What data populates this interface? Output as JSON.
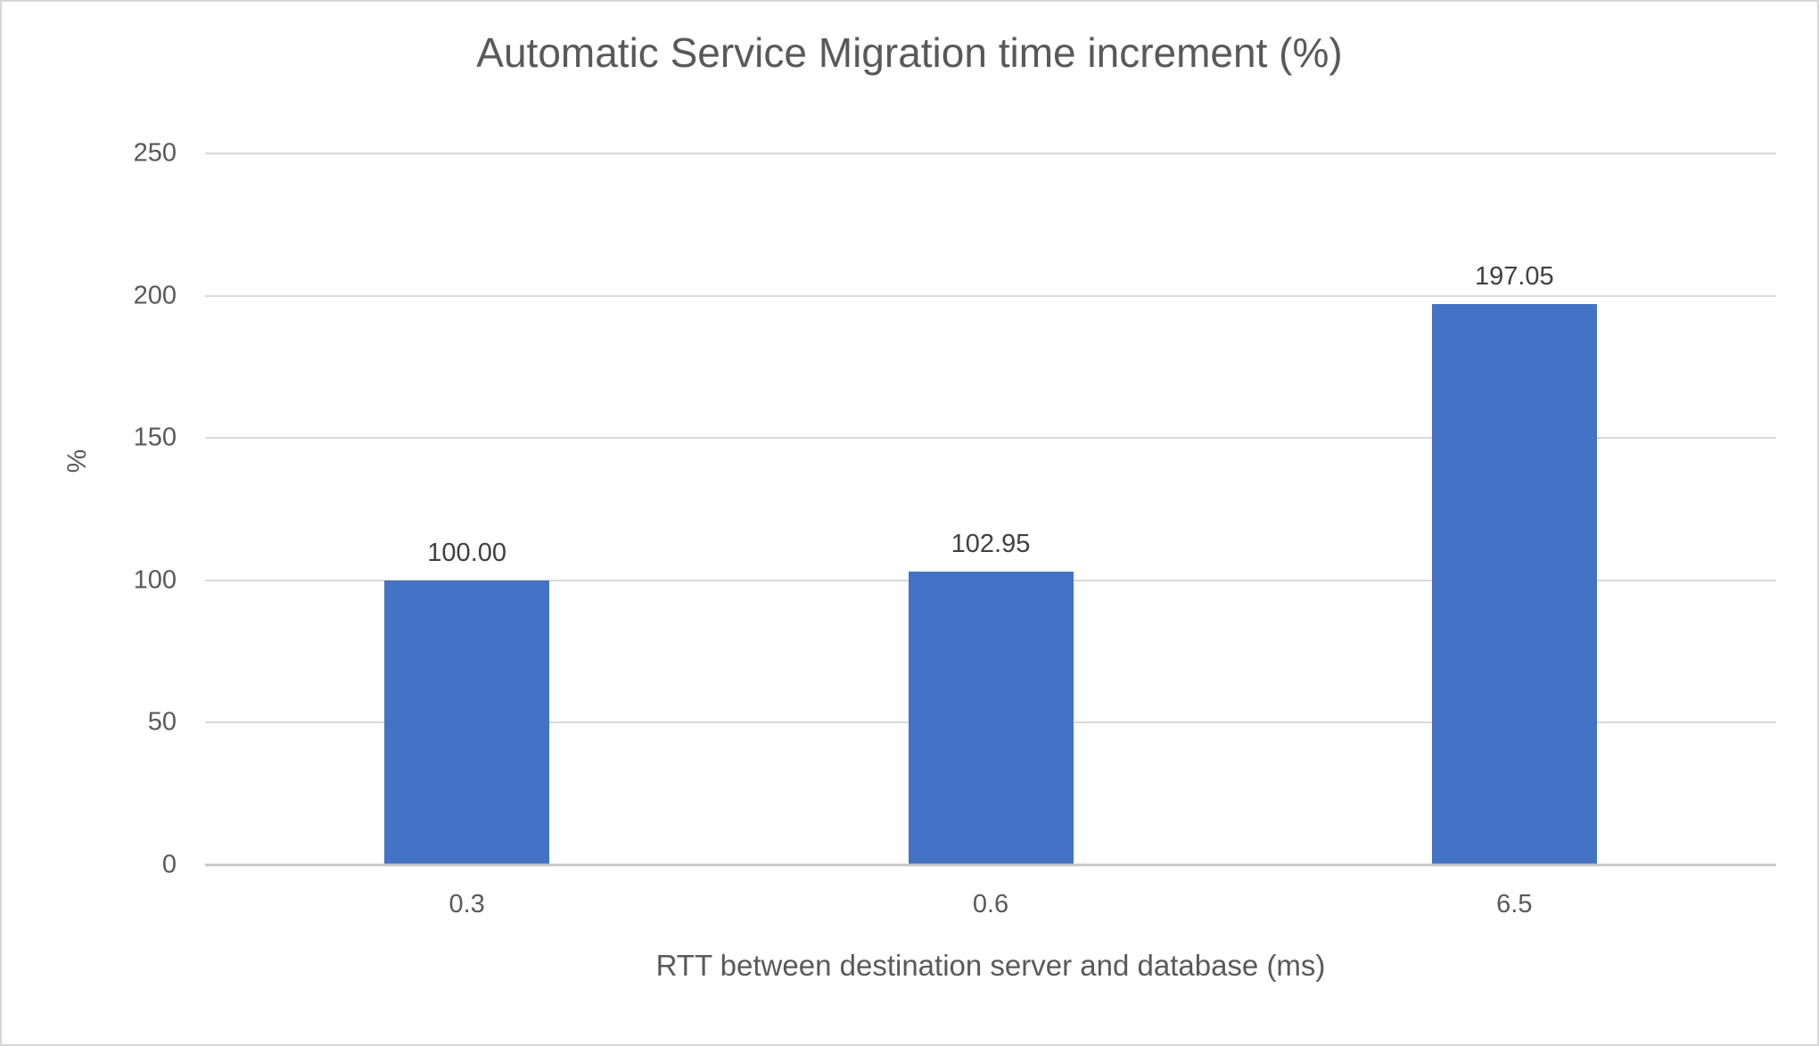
{
  "figure": {
    "background": "#ffffff",
    "border_color": "#d7d7d7"
  },
  "chart_data": {
    "type": "bar",
    "title": "Automatic Service Migration time increment (%)",
    "xlabel": "RTT between destination server and database (ms)",
    "ylabel": "%",
    "categories": [
      "0.3",
      "0.6",
      "6.5"
    ],
    "values": [
      100.0,
      102.95,
      197.05
    ],
    "value_labels": [
      "100.00",
      "102.95",
      "197.05"
    ],
    "ylim": [
      0,
      250
    ],
    "yticks": [
      0,
      50,
      100,
      150,
      200,
      250
    ],
    "grid": true,
    "legend": "none",
    "colors": {
      "bar": "#4472c4",
      "gridline": "#d9d9d9",
      "axis_line": "#c8c8c8",
      "tick_label": "#595959",
      "data_label": "#404040",
      "title": "#595959"
    }
  }
}
